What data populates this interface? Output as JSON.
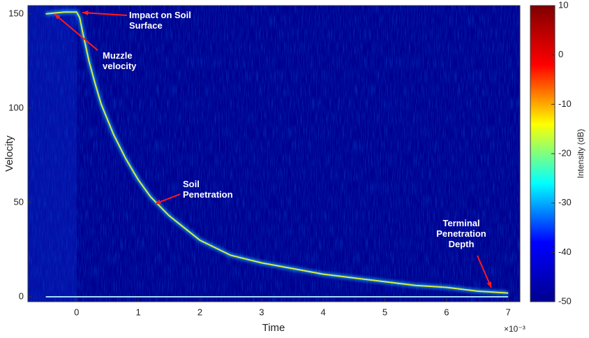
{
  "chart_data": {
    "type": "spectrogram",
    "x_label": "Time",
    "y_label": "Velocity",
    "x_exponent": "×10⁻³",
    "xlim": [
      -0.79,
      7.19
    ],
    "ylim": [
      -2.6,
      154.4
    ],
    "xticks": [
      0,
      1,
      2,
      3,
      4,
      5,
      6,
      7
    ],
    "yticks": [
      0,
      50,
      100,
      150
    ],
    "series": [
      {
        "color": "#d8ec4a",
        "x": [
          -0.5,
          -0.2,
          0,
          0.05,
          0.1,
          0.2,
          0.3,
          0.4,
          0.6,
          0.8,
          1.0,
          1.2,
          1.5,
          2.0,
          2.5,
          3.0,
          3.5,
          4.0,
          4.5,
          5.0,
          5.5,
          6.0,
          6.5,
          7.0
        ],
        "values": [
          150,
          151,
          151,
          148,
          140,
          125,
          113,
          102,
          86,
          73,
          62,
          53,
          43,
          30,
          22,
          18,
          15,
          12,
          10,
          8,
          6,
          5,
          3,
          2
        ]
      },
      {
        "color": "#9fdcff",
        "x": [
          -0.5,
          1,
          2,
          3,
          4,
          5,
          5.5,
          6,
          6.5,
          7
        ],
        "values": [
          0,
          0,
          0,
          0,
          0,
          0,
          0,
          0,
          0,
          0
        ]
      }
    ],
    "colorbar": {
      "label": "Intensity (dB)",
      "colormap": "jet",
      "lim": [
        -50,
        10
      ],
      "ticks": [
        -50,
        -40,
        -30,
        -20,
        -10,
        0,
        10
      ]
    },
    "annotations": [
      "Impact on Soil Surface",
      "Muzzle velocity",
      "Soil Penetration",
      "Terminal Penetration Depth"
    ]
  }
}
